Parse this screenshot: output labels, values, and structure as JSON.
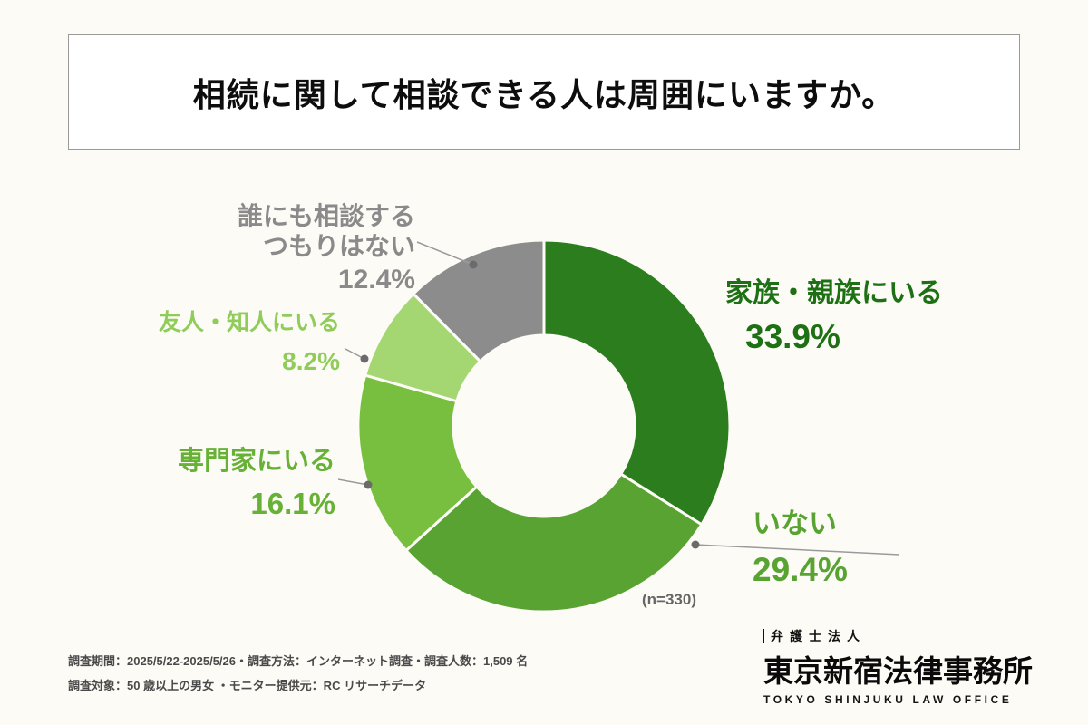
{
  "title": "相続に関して相談できる人は周囲にいますか。",
  "chart_data": {
    "type": "pie",
    "donut": true,
    "start_angle_deg": 0,
    "direction": "clockwise",
    "n_label": "(n=330)",
    "segments": [
      {
        "label": "家族・親族にいる",
        "value": 33.9,
        "display": "33.9%",
        "color": "#2b7d1e",
        "label_color": "#1d7013"
      },
      {
        "label": "いない",
        "value": 29.4,
        "display": "29.4%",
        "color": "#58a331",
        "label_color": "#58a331"
      },
      {
        "label": "専門家にいる",
        "value": 16.1,
        "display": "16.1%",
        "color": "#79bf3f",
        "label_color": "#67b236"
      },
      {
        "label": "友人・知人にいる",
        "value": 8.2,
        "display": "8.2%",
        "color": "#a4d771",
        "label_color": "#90cc59"
      },
      {
        "label": "誰にも相談するつもりはない",
        "value": 12.4,
        "display": "12.4%",
        "color": "#8c8c8c",
        "label_color": "#8a8a8a"
      }
    ]
  },
  "footer": {
    "line1": "調査期間：2025/5/22-2025/5/26・調査方法：インターネット調査・調査人数：1,509 名",
    "line2": "調査対象：50 歳以上の男女 ・モニター提供元：RC リサーチデータ"
  },
  "logo": {
    "firm_type": "弁護士法人",
    "name": "東京新宿法律事務所",
    "romanized": "TOKYO SHINJUKU LAW OFFICE"
  }
}
